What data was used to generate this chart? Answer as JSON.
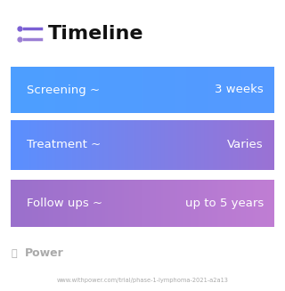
{
  "title": "Timeline",
  "title_fontsize": 16,
  "title_fontweight": "bold",
  "title_color": "#111111",
  "background_color": "#ffffff",
  "rows": [
    {
      "left_label": "Screening ~",
      "right_label": "3 weeks",
      "grad_start": "#4d9fff",
      "grad_end": "#4d9fff"
    },
    {
      "left_label": "Treatment ~",
      "right_label": "Varies",
      "grad_start": "#5599ff",
      "grad_end": "#9b72d4"
    },
    {
      "left_label": "Follow ups ~",
      "right_label": "up to 5 years",
      "grad_start": "#9b72cc",
      "grad_end": "#c07ed4"
    }
  ],
  "label_fontsize": 9.5,
  "label_color": "#ffffff",
  "watermark_text": "Power",
  "watermark_color": "#aaaaaa",
  "url_text": "www.withpower.com/trial/phase-1-lymphoma-2021-a2a13",
  "url_color": "#aaaaaa",
  "url_fontsize": 4.8,
  "icon_color": "#7b5fd4",
  "icon_color2": "#9b7fd4"
}
